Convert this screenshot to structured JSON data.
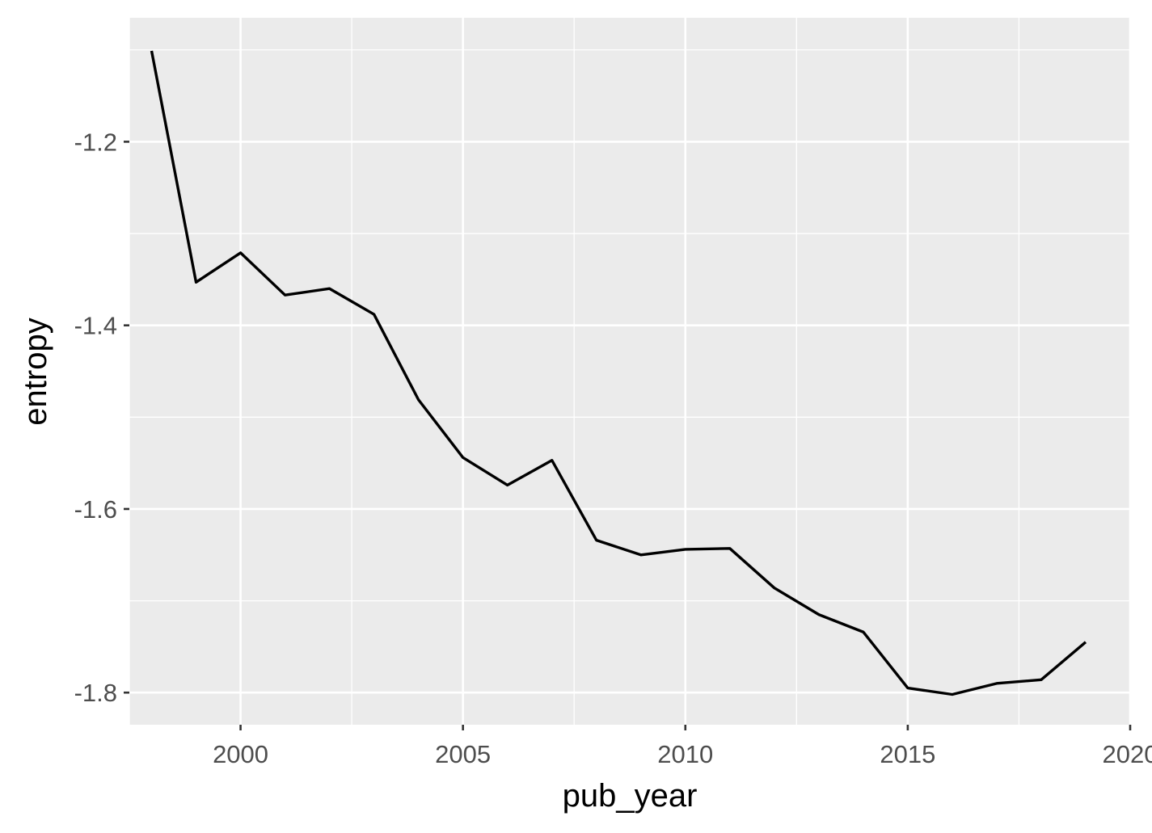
{
  "chart_data": {
    "type": "line",
    "title": "",
    "xlabel": "pub_year",
    "ylabel": "entropy",
    "xlim": [
      1997.5,
      2020
    ],
    "ylim": [
      -1.835,
      -1.065
    ],
    "x_ticks": [
      2000,
      2005,
      2010,
      2015,
      2020
    ],
    "x_tick_labels": [
      "2000",
      "2005",
      "2010",
      "2015",
      "2020"
    ],
    "y_ticks": [
      -1.2,
      -1.4,
      -1.6,
      -1.8
    ],
    "y_tick_labels": [
      "-1.2",
      "-1.4",
      "-1.6",
      "-1.8"
    ],
    "grid": true,
    "legend": "none",
    "series": [
      {
        "color": "#000000",
        "x": [
          1998,
          1999,
          2000,
          2001,
          2002,
          2003,
          2004,
          2005,
          2006,
          2007,
          2008,
          2009,
          2010,
          2011,
          2012,
          2013,
          2014,
          2015,
          2016,
          2017,
          2018,
          2019
        ],
        "y": [
          -1.101,
          -1.353,
          -1.321,
          -1.367,
          -1.36,
          -1.388,
          -1.481,
          -1.544,
          -1.574,
          -1.547,
          -1.634,
          -1.65,
          -1.644,
          -1.643,
          -1.686,
          -1.715,
          -1.734,
          -1.795,
          -1.802,
          -1.79,
          -1.786,
          -1.745
        ]
      }
    ]
  }
}
